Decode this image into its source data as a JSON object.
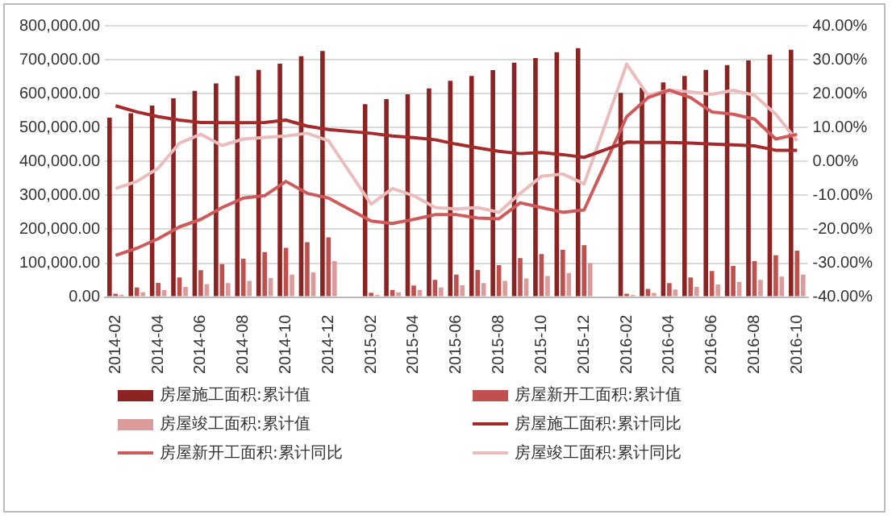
{
  "chart_data": {
    "type": "bar",
    "categories": [
      "2014-02",
      null,
      "2014-04",
      null,
      "2014-06",
      null,
      "2014-08",
      null,
      "2014-10",
      null,
      "2014-12",
      null,
      "2015-02",
      null,
      "2015-04",
      null,
      "2015-06",
      null,
      "2015-08",
      null,
      "2015-10",
      null,
      "2015-12",
      null,
      "2016-02",
      null,
      "2016-04",
      null,
      "2016-06",
      null,
      "2016-08",
      null,
      "2016-10"
    ],
    "series": [
      {
        "name": "房屋施工面积:累计值",
        "color": "#8b2323",
        "values": [
          529000,
          542000,
          565000,
          586000,
          608000,
          630000,
          652000,
          670000,
          688000,
          710000,
          726000,
          null,
          569000,
          584000,
          598000,
          615000,
          638000,
          652000,
          669000,
          691000,
          705000,
          722000,
          734000,
          null,
          602000,
          617000,
          633000,
          652000,
          670000,
          684000,
          698000,
          715000,
          729000
        ]
      },
      {
        "name": "房屋新开工面积:累计值",
        "color": "#c0504d",
        "values": [
          10000,
          28000,
          42000,
          58000,
          79000,
          97000,
          113000,
          133000,
          145000,
          162000,
          176000,
          null,
          13000,
          21000,
          34000,
          51000,
          66000,
          80000,
          94000,
          115000,
          127000,
          139000,
          153000,
          null,
          10000,
          24000,
          41000,
          58000,
          77000,
          92000,
          106000,
          123000,
          137000
        ]
      },
      {
        "name": "房屋竣工面积:累计值",
        "color": "#dc9a9a",
        "values": [
          7000,
          14000,
          21000,
          30000,
          38000,
          41000,
          48000,
          56000,
          66000,
          73000,
          106000,
          null,
          6000,
          14000,
          21000,
          28000,
          35000,
          41000,
          48000,
          55000,
          62000,
          71000,
          100000,
          null,
          6000,
          12000,
          22000,
          30000,
          37000,
          45000,
          51000,
          60000,
          66000
        ]
      },
      {
        "name": "房屋施工面积:累计同比",
        "type": "line",
        "axis": "y2",
        "color": "#a52a2a",
        "values": [
          16.4,
          14.6,
          13.2,
          12.2,
          11.5,
          11.4,
          11.4,
          11.5,
          12.2,
          10.4,
          9.4,
          null,
          8.3,
          7.5,
          7.0,
          6.4,
          5.1,
          4.0,
          3.0,
          2.3,
          2.6,
          2.0,
          1.2,
          null,
          5.7,
          5.6,
          5.6,
          5.4,
          5.1,
          4.9,
          4.6,
          3.3,
          3.3
        ]
      },
      {
        "name": "房屋新开工面积:累计同比",
        "type": "line",
        "axis": "y2",
        "color": "#d05a5a",
        "values": [
          -27.7,
          -25.6,
          -22.8,
          -19.3,
          -17.1,
          -13.6,
          -10.8,
          -10.1,
          -5.9,
          -9.4,
          -10.8,
          null,
          -17.6,
          -18.3,
          -17.1,
          -15.7,
          -15.7,
          -16.7,
          -16.9,
          -12.2,
          -13.6,
          -15.0,
          -14.3,
          null,
          13.2,
          18.8,
          21.0,
          18.8,
          14.6,
          13.9,
          12.5,
          6.6,
          8.0
        ]
      },
      {
        "name": "房屋竣工面积:累计同比",
        "type": "line",
        "axis": "y2",
        "color": "#ebbcbc",
        "values": [
          -8.0,
          -5.9,
          -2.0,
          5.4,
          8.0,
          4.7,
          6.6,
          7.1,
          7.5,
          8.3,
          6.1,
          null,
          -12.6,
          -8.0,
          -10.1,
          -13.6,
          -14.0,
          -13.6,
          -15.0,
          -9.4,
          -4.4,
          -3.7,
          -6.6,
          null,
          28.7,
          19.5,
          21.0,
          20.5,
          19.8,
          21.0,
          19.5,
          13.9,
          6.1
        ]
      }
    ],
    "ylim": [
      0,
      800000
    ],
    "yticks": [
      {
        "value": 0,
        "label": "0.00"
      },
      {
        "value": 100000,
        "label": "100,000.00"
      },
      {
        "value": 200000,
        "label": "200,000.00"
      },
      {
        "value": 300000,
        "label": "300,000.00"
      },
      {
        "value": 400000,
        "label": "400,000.00"
      },
      {
        "value": 500000,
        "label": "500,000.00"
      },
      {
        "value": 600000,
        "label": "600,000.00"
      },
      {
        "value": 700000,
        "label": "700,000.00"
      },
      {
        "value": 800000,
        "label": "800,000.00"
      }
    ],
    "y2lim": [
      -40,
      40
    ],
    "y2ticks": [
      {
        "value": -40,
        "label": "-40.00%"
      },
      {
        "value": -30,
        "label": "-30.00%"
      },
      {
        "value": -20,
        "label": "-20.00%"
      },
      {
        "value": -10,
        "label": "-10.00%"
      },
      {
        "value": 0,
        "label": "0.00%"
      },
      {
        "value": 10,
        "label": "10.00%"
      },
      {
        "value": 20,
        "label": "20.00%"
      },
      {
        "value": 30,
        "label": "30.00%"
      },
      {
        "value": 40,
        "label": "40.00%"
      }
    ],
    "grid": "y",
    "legend": "bottom",
    "marker": "none"
  }
}
